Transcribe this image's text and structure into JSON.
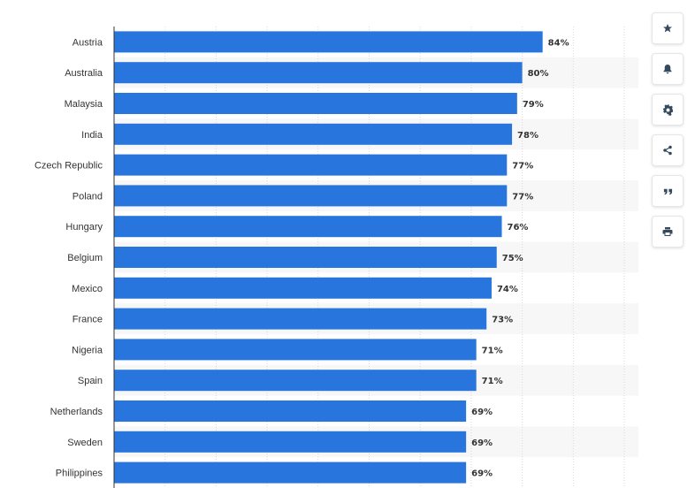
{
  "chart_data": {
    "type": "bar",
    "orientation": "horizontal",
    "categories": [
      "Austria",
      "Australia",
      "Malaysia",
      "India",
      "Czech Republic",
      "Poland",
      "Hungary",
      "Belgium",
      "Mexico",
      "France",
      "Nigeria",
      "Spain",
      "Netherlands",
      "Sweden",
      "Philippines"
    ],
    "values": [
      84,
      80,
      79,
      78,
      77,
      77,
      76,
      75,
      74,
      73,
      71,
      71,
      69,
      69,
      69
    ],
    "value_labels": [
      "84%",
      "80%",
      "79%",
      "78%",
      "77%",
      "77%",
      "76%",
      "75%",
      "74%",
      "73%",
      "71%",
      "71%",
      "69%",
      "69%",
      "69%"
    ],
    "xlim": [
      0,
      100
    ],
    "grid": true,
    "title": "",
    "xlabel": "",
    "ylabel": "",
    "bar_color": "#2876dd"
  },
  "colors": {
    "bar": "#2876dd",
    "stripe": "#f7f7f7",
    "grid": "#d8d8d8",
    "axis": "#333333",
    "icon": "#34495e"
  },
  "toolbar": [
    {
      "icon": "star-icon",
      "name": "favorite-button"
    },
    {
      "icon": "bell-icon",
      "name": "notification-button"
    },
    {
      "icon": "gear-icon",
      "name": "settings-button"
    },
    {
      "icon": "share-icon",
      "name": "share-button"
    },
    {
      "icon": "quote-icon",
      "name": "cite-button"
    },
    {
      "icon": "print-icon",
      "name": "print-button"
    }
  ]
}
